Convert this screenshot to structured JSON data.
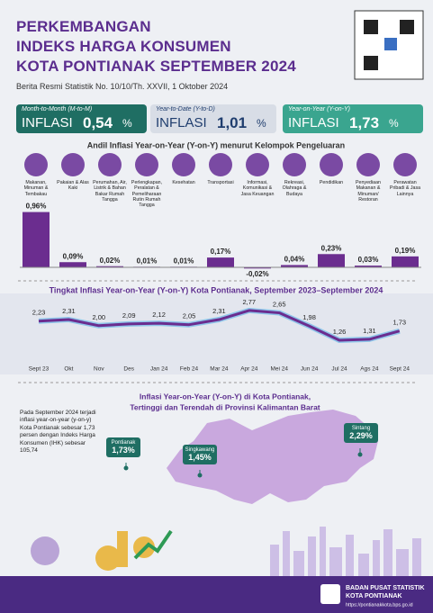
{
  "header": {
    "title_lines": [
      "PERKEMBANGAN",
      "INDEKS HARGA KONSUMEN",
      "KOTA PONTIANAK SEPTEMBER 2024"
    ],
    "subtitle": "Berita Resmi Statistik No. 10/10/Th. XXVII, 1 Oktober 2024"
  },
  "summary": [
    {
      "label": "Month-to-Month (M-to-M)",
      "word": "INFLASI",
      "value": "0,54",
      "unit": "%"
    },
    {
      "label": "Year-to-Date (Y-to-D)",
      "word": "INFLASI",
      "value": "1,01",
      "unit": "%"
    },
    {
      "label": "Year-on-Year (Y-on-Y)",
      "word": "INFLASI",
      "value": "1,73",
      "unit": "%"
    }
  ],
  "chart_data": [
    {
      "type": "bar",
      "title": "Andil Inflasi Year-on-Year (Y-on-Y) menurut Kelompok Pengeluaran",
      "color": "#6b2d8f",
      "categories": [
        "Makanan, Minuman & Tembakau",
        "Pakaian & Alas Kaki",
        "Perumahan, Air, Listrik & Bahan Bakar Rumah Tangga",
        "Perlengkapan, Peralatan & Pemeliharaan Rutin Rumah Tangga",
        "Kesehatan",
        "Transportasi",
        "Informasi, Komunikasi & Jasa Keuangan",
        "Rekreasi, Olahraga & Budaya",
        "Pendidikan",
        "Penyediaan Makanan & Minuman/ Restoran",
        "Perawatan Pribadi & Jasa Lainnya"
      ],
      "values": [
        0.96,
        0.09,
        0.02,
        0.01,
        0.01,
        0.17,
        -0.02,
        0.04,
        0.23,
        0.03,
        0.19
      ],
      "value_labels": [
        "0,96%",
        "0,09%",
        "0,02%",
        "0,01%",
        "0,01%",
        "0,17%",
        "-0,02%",
        "0,04%",
        "0,23%",
        "0,03%",
        "0,19%"
      ]
    },
    {
      "type": "line",
      "title": "Tingkat Inflasi Year-on-Year (Y-on-Y) Kota Pontianak, September 2023–September 2024",
      "color": "#6b2d8f",
      "categories": [
        "Sept 23",
        "Okt",
        "Nov",
        "Des",
        "Jan 24",
        "Feb 24",
        "Mar 24",
        "Apr 24",
        "Mei 24",
        "Jun 24",
        "Jul 24",
        "Ags 24",
        "Sept 24"
      ],
      "values": [
        2.23,
        2.31,
        2.0,
        2.09,
        2.12,
        2.05,
        2.31,
        2.77,
        2.65,
        1.98,
        1.26,
        1.31,
        1.73
      ],
      "value_labels": [
        "2,23",
        "2,31",
        "2,00",
        "2,09",
        "2,12",
        "2,05",
        "2,31",
        "2,77",
        "2,65",
        "1,98",
        "1,26",
        "1,31",
        "1,73"
      ]
    }
  ],
  "map": {
    "title_lines": [
      "Inflasi Year-on-Year (Y-on-Y) di Kota Pontianak,",
      "Tertinggi dan Terendah di Provinsi Kalimantan Barat"
    ],
    "note": "Pada September 2024 terjadi inflasi year-on-year (y-on-y) Kota Pontianak sebesar 1,73 persen dengan Indeks Harga Konsumen (IHK) sebesar 105,74",
    "callouts": [
      {
        "city": "Pontianak",
        "value": "1,73%"
      },
      {
        "city": "Singkawang",
        "value": "1,45%"
      },
      {
        "city": "Sintang",
        "value": "2,29%"
      }
    ]
  },
  "footer": {
    "org": "BADAN PUSAT STATISTIK",
    "unit": "KOTA PONTIANAK",
    "url": "https://pontianakkota.bps.go.id"
  }
}
